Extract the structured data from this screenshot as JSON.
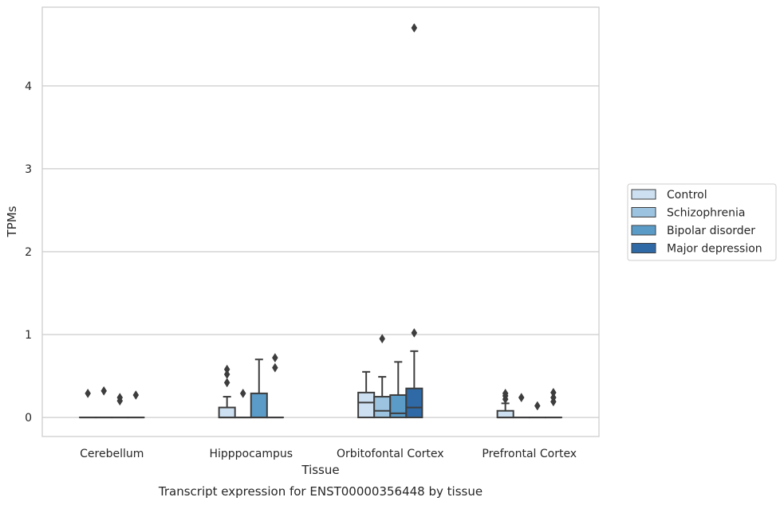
{
  "chart_data": {
    "type": "box",
    "title": "",
    "caption": "Transcript expression for ENST00000356448 by tissue",
    "xlabel": "Tissue",
    "ylabel": "TPMs",
    "ylim": [
      -0.23,
      4.95
    ],
    "yticks": [
      0,
      1,
      2,
      3,
      4
    ],
    "grid": "horizontal",
    "legend_position": "right",
    "categories": [
      "Cerebellum",
      "Hipppocampus",
      "Orbitofontal Cortex",
      "Prefrontal Cortex"
    ],
    "series": [
      {
        "name": "Control",
        "color": "#cde0f1",
        "boxes": [
          {
            "q1": 0,
            "median": 0,
            "q3": 0,
            "whisker_low": 0,
            "whisker_high": 0,
            "outliers": [
              0.29
            ]
          },
          {
            "q1": 0,
            "median": 0,
            "q3": 0.12,
            "whisker_low": 0,
            "whisker_high": 0.25,
            "outliers": [
              0.42,
              0.52,
              0.58
            ]
          },
          {
            "q1": 0,
            "median": 0.18,
            "q3": 0.3,
            "whisker_low": 0,
            "whisker_high": 0.55,
            "outliers": []
          },
          {
            "q1": 0,
            "median": 0,
            "q3": 0.08,
            "whisker_low": 0,
            "whisker_high": 0.17,
            "outliers": [
              0.22,
              0.26,
              0.29
            ]
          }
        ]
      },
      {
        "name": "Schizophrenia",
        "color": "#9cc3df",
        "boxes": [
          {
            "q1": 0,
            "median": 0,
            "q3": 0,
            "whisker_low": 0,
            "whisker_high": 0,
            "outliers": [
              0.32
            ]
          },
          {
            "q1": 0,
            "median": 0,
            "q3": 0,
            "whisker_low": 0,
            "whisker_high": 0,
            "outliers": [
              0.29
            ]
          },
          {
            "q1": 0,
            "median": 0.08,
            "q3": 0.25,
            "whisker_low": 0,
            "whisker_high": 0.49,
            "outliers": [
              0.95
            ]
          },
          {
            "q1": 0,
            "median": 0,
            "q3": 0,
            "whisker_low": 0,
            "whisker_high": 0,
            "outliers": [
              0.24
            ]
          }
        ]
      },
      {
        "name": "Bipolar disorder",
        "color": "#5a9bc8",
        "boxes": [
          {
            "q1": 0,
            "median": 0,
            "q3": 0,
            "whisker_low": 0,
            "whisker_high": 0,
            "outliers": [
              0.2,
              0.24
            ]
          },
          {
            "q1": 0,
            "median": 0,
            "q3": 0.29,
            "whisker_low": 0,
            "whisker_high": 0.7,
            "outliers": []
          },
          {
            "q1": 0,
            "median": 0.05,
            "q3": 0.27,
            "whisker_low": 0,
            "whisker_high": 0.67,
            "outliers": []
          },
          {
            "q1": 0,
            "median": 0,
            "q3": 0,
            "whisker_low": 0,
            "whisker_high": 0,
            "outliers": [
              0.14
            ]
          }
        ]
      },
      {
        "name": "Major depression",
        "color": "#2f6aa7",
        "boxes": [
          {
            "q1": 0,
            "median": 0,
            "q3": 0,
            "whisker_low": 0,
            "whisker_high": 0,
            "outliers": [
              0.27
            ]
          },
          {
            "q1": 0,
            "median": 0,
            "q3": 0,
            "whisker_low": 0,
            "whisker_high": 0,
            "outliers": [
              0.6,
              0.72
            ]
          },
          {
            "q1": 0,
            "median": 0.12,
            "q3": 0.35,
            "whisker_low": 0,
            "whisker_high": 0.8,
            "outliers": [
              1.02,
              4.7
            ]
          },
          {
            "q1": 0,
            "median": 0,
            "q3": 0,
            "whisker_low": 0,
            "whisker_high": 0,
            "outliers": [
              0.19,
              0.24,
              0.3
            ]
          }
        ]
      }
    ]
  }
}
